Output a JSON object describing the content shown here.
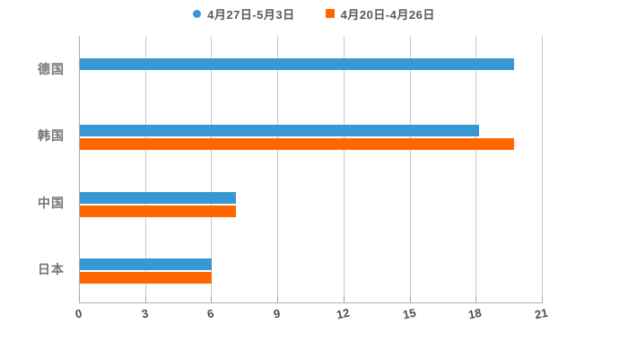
{
  "legend": {
    "items": [
      {
        "label": "4月27日-5月3日",
        "color": "#3798d4",
        "marker": "circle"
      },
      {
        "label": "4月20日-4月26日",
        "color": "#ff6600",
        "marker": "square"
      }
    ]
  },
  "chart_data": {
    "type": "bar",
    "orientation": "horizontal",
    "title": "",
    "categories": [
      "德国",
      "韩国",
      "中国",
      "日本"
    ],
    "series": [
      {
        "name": "4月27日-5月3日",
        "color": "#3798d4",
        "values": [
          19.7,
          18.1,
          7.1,
          6
        ]
      },
      {
        "name": "4月20日-4月26日",
        "color": "#ff6600",
        "values": [
          0,
          19.7,
          7.1,
          6
        ]
      }
    ],
    "xlim": [
      0,
      21
    ],
    "xticks": [
      "0",
      "3",
      "6",
      "9",
      "12",
      "15",
      "18",
      "21"
    ],
    "grid": true,
    "legend_position": "top"
  },
  "styles": {
    "background": "#ffffff",
    "grid_color": "#c9c9c9",
    "axis_color": "#b0b0b0",
    "tick_label_color": "#4d4d4d",
    "category_label_color": "#757575",
    "legend_text_color": "#595959"
  }
}
